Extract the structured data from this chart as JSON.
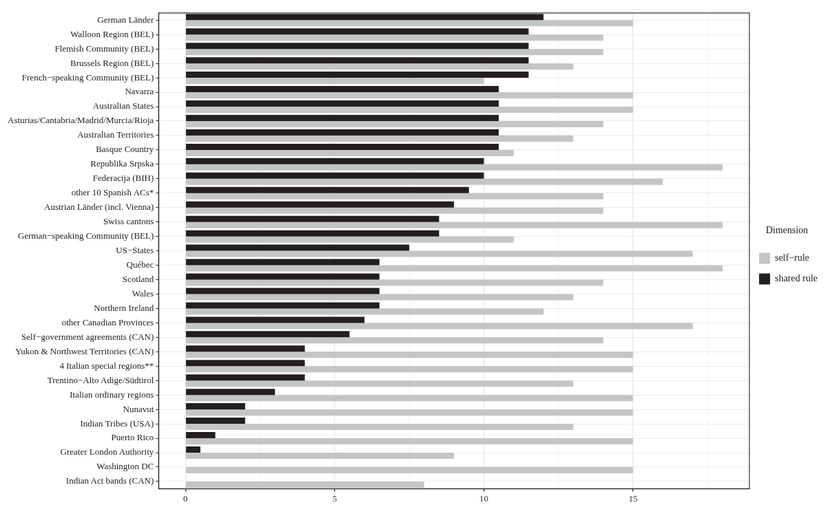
{
  "chart_data": {
    "type": "bar",
    "orientation": "horizontal",
    "legend": "right",
    "legend_title": "Dimension",
    "grid": true,
    "categories": [
      "German Länder",
      "Walloon Region (BEL)",
      "Flemish Community (BEL)",
      "Brussels Region (BEL)",
      "French−speaking Community (BEL)",
      "Navarra",
      "Australian States",
      "Asturias/Cantabria/Madrid/Murcia/Rioja",
      "Australian Territories",
      "Basque Country",
      "Republika Srpska",
      "Federacija (BIH)",
      "other 10 Spanish ACs*",
      "Austrian Länder (incl. Vienna)",
      "Swiss cantons",
      "German−speaking Community (BEL)",
      "US−States",
      "Québec",
      "Scotland",
      "Wales",
      "Northern Ireland",
      "other Canadian Provinces",
      "Self−government agreements (CAN)",
      "Yukon & Northwest Territories (CAN)",
      "4 Italian special regions**",
      "Trentino−Alto Adige/Südtirol",
      "Italian ordinary regions",
      "Nunavut",
      "Indian Tribes (USA)",
      "Puerto Rico",
      "Greater London Authority",
      "Washington DC",
      "Indian Act bands (CAN)"
    ],
    "series": [
      {
        "name": "self−rule",
        "color": "#c4c5c7",
        "values": [
          15,
          14,
          14,
          13,
          10,
          15,
          15,
          14,
          13,
          11,
          18,
          16,
          14,
          14,
          18,
          11,
          17,
          18,
          14,
          13,
          12,
          17,
          14,
          15,
          15,
          13,
          15,
          15,
          13,
          15,
          9,
          15,
          8
        ]
      },
      {
        "name": "shared rule",
        "color": "#231f20",
        "values": [
          12,
          11.5,
          11.5,
          11.5,
          11.5,
          10.5,
          10.5,
          10.5,
          10.5,
          10.5,
          10,
          10,
          9.5,
          9,
          8.5,
          8.5,
          7.5,
          6.5,
          6.5,
          6.5,
          6.5,
          6,
          5.5,
          4,
          4,
          4,
          3,
          2,
          2,
          1,
          0.5,
          0,
          0
        ]
      }
    ],
    "xlim": [
      -0.9,
      18.9
    ],
    "xticks": [
      0,
      {
        "value": 2.5,
        "label": null
      },
      5,
      {
        "value": 7.5,
        "label": null
      },
      10,
      {
        "value": 12.5,
        "label": null
      },
      15,
      {
        "value": 17.5,
        "label": null
      }
    ]
  }
}
